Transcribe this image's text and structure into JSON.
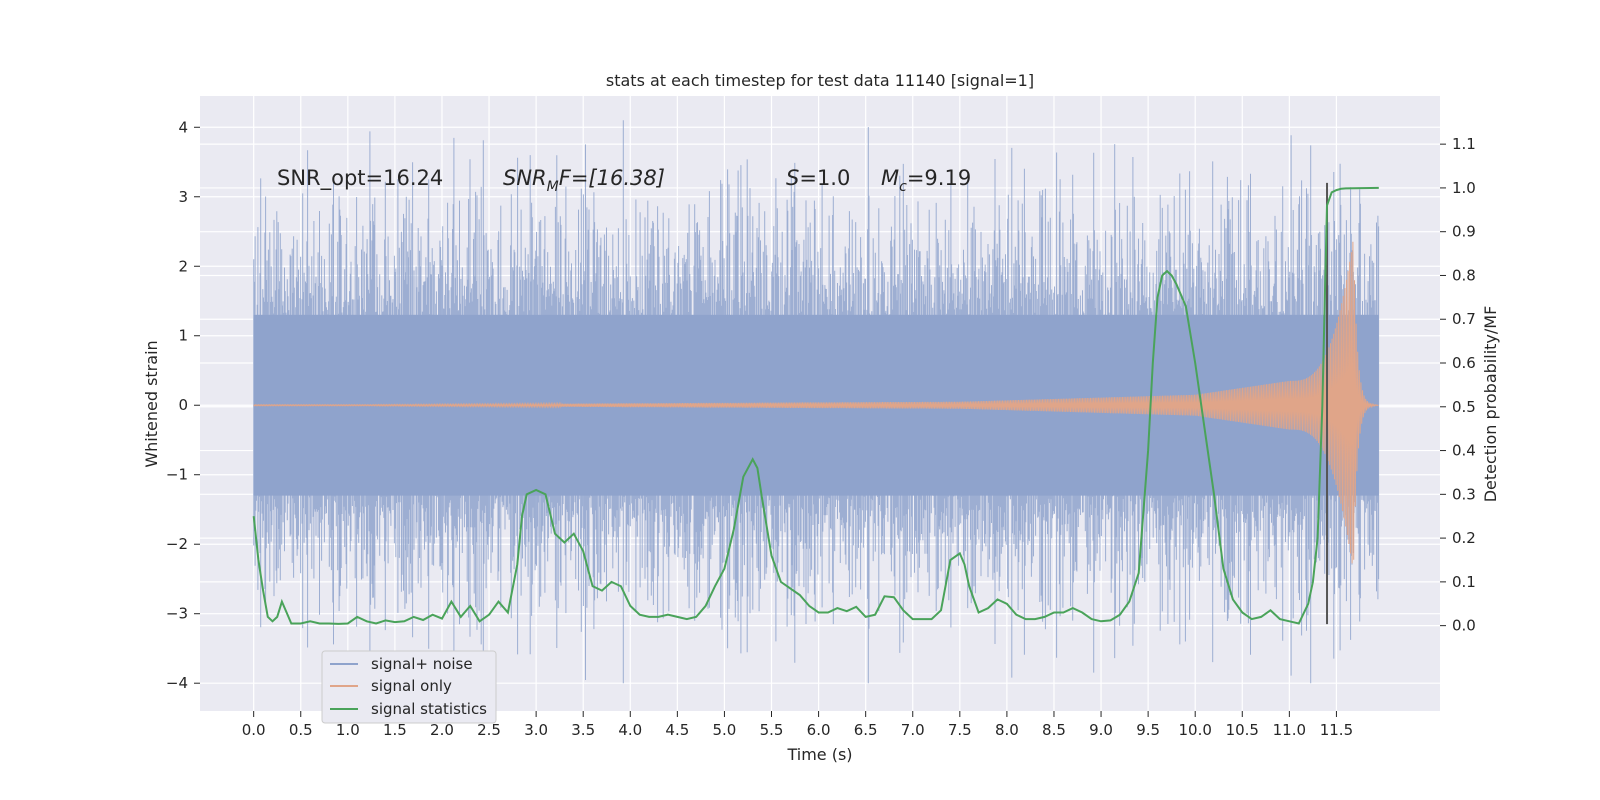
{
  "chart_data": {
    "type": "line",
    "title": "stats at each timestep for test data 11140 [signal=1]",
    "xlabel": "Time (s)",
    "ylabel_left": "Whitened strain",
    "ylabel_right": "Detection probability/MF",
    "xlim": [
      -0.57,
      12.6
    ],
    "ylim_left": [
      -4.4,
      4.45
    ],
    "ylim_right": [
      -0.195,
      1.21
    ],
    "x_ticks": [
      "0.0",
      "0.5",
      "1.0",
      "1.5",
      "2.0",
      "2.5",
      "3.0",
      "3.5",
      "4.0",
      "4.5",
      "5.0",
      "5.5",
      "6.0",
      "6.5",
      "7.0",
      "7.5",
      "8.0",
      "8.5",
      "9.0",
      "9.5",
      "10.0",
      "10.5",
      "11.0",
      "11.5"
    ],
    "y_ticks_left": [
      "−4",
      "−3",
      "−2",
      "−1",
      "0",
      "1",
      "2",
      "3",
      "4"
    ],
    "y_ticks_right": [
      "0.0",
      "0.1",
      "0.2",
      "0.3",
      "0.4",
      "0.5",
      "0.6",
      "0.7",
      "0.8",
      "0.9",
      "1.0",
      "1.1"
    ],
    "grid": true,
    "legend_position": "lower-left",
    "annotations": {
      "snr_opt": "SNR_opt=16.24",
      "snr_mf": {
        "main": "SNR",
        "sub": "M",
        "rest": "F=[16.38]"
      },
      "s_value": {
        "sym": "S",
        "rest": "=1.0"
      },
      "mc_value": {
        "sym": "M",
        "sub": "c",
        "rest": "=9.19"
      }
    },
    "merger_time": 11.4,
    "series": [
      {
        "name": "signal+ noise",
        "color": "#8fa3cc",
        "description_values": {
          "t_start": 0.0,
          "t_end": 11.95,
          "envelope_typical": 1.3,
          "peak_max": 4.1,
          "peak_min": -4.0
        }
      },
      {
        "name": "signal only",
        "color": "#e0a589",
        "chirp": {
          "t_start": 0.0,
          "t_merger": 11.68,
          "amp_at_7.5": 0.05,
          "amp_at_10": 0.15,
          "amp_at_11": 0.35,
          "amp_peak": 2.4,
          "t_end": 11.95
        }
      },
      {
        "name": "signal statistics",
        "color": "#4aa35a",
        "x": [
          0.0,
          0.05,
          0.1,
          0.15,
          0.2,
          0.25,
          0.3,
          0.35,
          0.4,
          0.5,
          0.6,
          0.7,
          0.8,
          0.9,
          1.0,
          1.1,
          1.2,
          1.3,
          1.4,
          1.5,
          1.6,
          1.7,
          1.8,
          1.9,
          2.0,
          2.1,
          2.2,
          2.3,
          2.4,
          2.5,
          2.6,
          2.7,
          2.8,
          2.85,
          2.9,
          3.0,
          3.1,
          3.2,
          3.3,
          3.4,
          3.5,
          3.6,
          3.7,
          3.8,
          3.9,
          4.0,
          4.1,
          4.2,
          4.3,
          4.4,
          4.5,
          4.6,
          4.7,
          4.8,
          4.9,
          5.0,
          5.1,
          5.2,
          5.3,
          5.35,
          5.4,
          5.5,
          5.6,
          5.7,
          5.8,
          5.9,
          6.0,
          6.1,
          6.2,
          6.3,
          6.4,
          6.5,
          6.6,
          6.7,
          6.8,
          6.9,
          7.0,
          7.1,
          7.2,
          7.3,
          7.4,
          7.5,
          7.55,
          7.6,
          7.7,
          7.8,
          7.9,
          8.0,
          8.1,
          8.2,
          8.3,
          8.4,
          8.5,
          8.6,
          8.7,
          8.8,
          8.9,
          9.0,
          9.1,
          9.2,
          9.3,
          9.4,
          9.5,
          9.55,
          9.6,
          9.65,
          9.7,
          9.75,
          9.8,
          9.9,
          10.0,
          10.1,
          10.2,
          10.3,
          10.4,
          10.5,
          10.6,
          10.7,
          10.8,
          10.9,
          11.0,
          11.1,
          11.2,
          11.25,
          11.3,
          11.35,
          11.4,
          11.45,
          11.5,
          11.55,
          11.6,
          11.95
        ],
        "values": [
          0.25,
          0.15,
          0.08,
          0.02,
          0.01,
          0.02,
          0.055,
          0.03,
          0.005,
          0.005,
          0.01,
          0.005,
          0.005,
          0.004,
          0.005,
          0.02,
          0.01,
          0.005,
          0.012,
          0.008,
          0.01,
          0.02,
          0.013,
          0.025,
          0.016,
          0.055,
          0.02,
          0.045,
          0.01,
          0.025,
          0.055,
          0.03,
          0.14,
          0.25,
          0.3,
          0.31,
          0.3,
          0.21,
          0.19,
          0.21,
          0.17,
          0.09,
          0.08,
          0.1,
          0.09,
          0.045,
          0.025,
          0.02,
          0.02,
          0.025,
          0.02,
          0.015,
          0.02,
          0.045,
          0.09,
          0.13,
          0.22,
          0.34,
          0.38,
          0.36,
          0.29,
          0.16,
          0.1,
          0.085,
          0.07,
          0.045,
          0.03,
          0.03,
          0.04,
          0.033,
          0.043,
          0.02,
          0.025,
          0.067,
          0.065,
          0.035,
          0.015,
          0.015,
          0.015,
          0.035,
          0.15,
          0.165,
          0.14,
          0.09,
          0.03,
          0.04,
          0.06,
          0.05,
          0.025,
          0.015,
          0.015,
          0.02,
          0.03,
          0.03,
          0.04,
          0.03,
          0.015,
          0.01,
          0.012,
          0.025,
          0.055,
          0.12,
          0.4,
          0.6,
          0.75,
          0.8,
          0.81,
          0.8,
          0.78,
          0.73,
          0.6,
          0.45,
          0.3,
          0.13,
          0.06,
          0.03,
          0.015,
          0.02,
          0.035,
          0.015,
          0.01,
          0.005,
          0.05,
          0.1,
          0.2,
          0.5,
          0.96,
          0.99,
          0.995,
          0.998,
          0.999,
          1.0
        ]
      }
    ]
  }
}
